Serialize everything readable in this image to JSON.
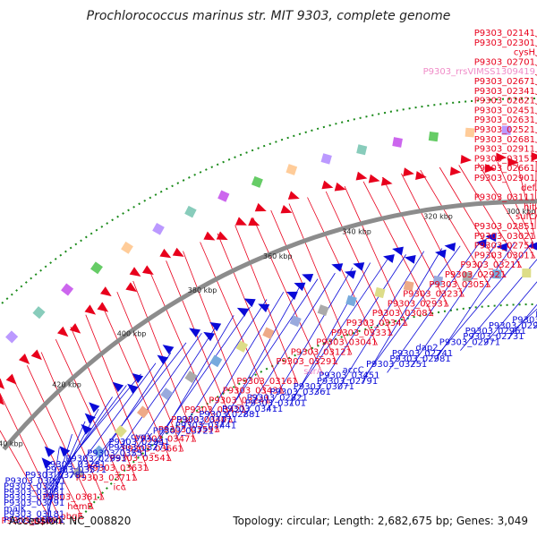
{
  "title": "Prochlorococcus marinus str. MIT 9303, complete genome",
  "footer": {
    "accession": "Accession: NC_008820",
    "summary": "Topology: circular; Length: 2,682,675 bp; Genes: 3,049"
  },
  "colors": {
    "forward": "#e8001c",
    "reverse": "#0a0ad8",
    "rna": "#f08cc8",
    "backbone": "#8c8c8c",
    "dots": "#1a8a1a"
  },
  "kbp_ticks": [
    "220 kbp",
    "240 kbp",
    "260 kbp",
    "280 kbp",
    "300 kbp",
    "320 kbp",
    "340 kbp",
    "360 kbp",
    "380 kbp",
    "400 kbp",
    "420 kbp",
    "440 kbp"
  ],
  "forward_labels": [
    "P9303_02141",
    "P9303_02301",
    "cysH",
    "P9303_02701",
    "P9303_rrsVIMSS1309419",
    "P9303_02671",
    "P9303_02341",
    "P9303_02621",
    "P9303_02451",
    "P9303_02631",
    "P9303_02521",
    "P9303_02681",
    "P9303_02911",
    "P9303_03151",
    "P9303_02661",
    "P9303_02901",
    "def",
    "P9303_03111",
    "hit",
    "sufC",
    "P9303_02851",
    "P9303_03021",
    "P9303_02751",
    "P9303_03011",
    "P9303_03211",
    "P9303_02921",
    "P9303_03051",
    "P9303_03231",
    "P9303_02931",
    "P9303_03081",
    "P9303_03341",
    "P9303_03331",
    "P9303_03041",
    "P9303_03121",
    "P9303_03291",
    "ssrA",
    "P9303_03161",
    "P9303_03431",
    "P9303_03241",
    "P9303_03421",
    "P9303_03401",
    "P9303_03591",
    "P9303_03471",
    "P9303_03661",
    "P9303_03541",
    "P9303_03631",
    "P9303_03711",
    "icc",
    "P9303_03811",
    "hemB",
    "obgE",
    "P9303_03891",
    "aspA"
  ],
  "reverse_labels": [
    "nadB",
    "psbU",
    "xseA",
    "P9303_02651",
    "hrpB",
    "trkG",
    "P9303_02471",
    "anmK",
    "pgm",
    "citT",
    "P9303_02581",
    "P9303_02781",
    "P9303_02711",
    "P9303_02721",
    "P9303_02951",
    "P9303_02961",
    "P9303_02731",
    "P9303_02971",
    "dap2",
    "P9303_02741",
    "P9303_02981",
    "P9303_03251",
    "accC",
    "P9303_03451",
    "P9303_02791",
    "P9303_03071",
    "P9303_03361",
    "P9303_02821",
    "P9303_03101",
    "P9303_03411",
    "P9303_02881",
    "P9303_03171",
    "P9303_03441",
    "P9303_03721",
    "cypX",
    "P9303_02941",
    "P9303_03271",
    "P9303_03551",
    "P9303_02991",
    "P9303_03281",
    "P9303_03571",
    "P9303_03781",
    "P9303_03001",
    "P9303_03531",
    "P9303_03131",
    "P9303_03581",
    "P9303_03791",
    "malK",
    "P9303_03181",
    "P9303_03821"
  ]
}
